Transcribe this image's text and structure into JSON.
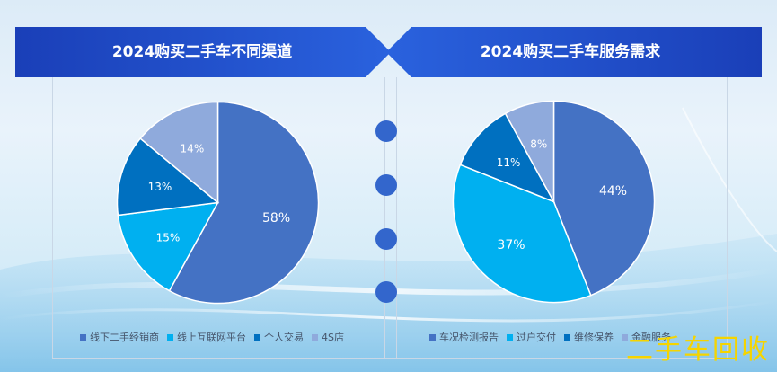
{
  "chart_data": [
    {
      "type": "pie",
      "title": "2024购买二手车不同渠道",
      "categories": [
        "线下二手经销商",
        "线上互联网平台",
        "个人交易",
        "4S店"
      ],
      "values": [
        58,
        15,
        13,
        14
      ],
      "value_labels": [
        "58%",
        "15%",
        "13%",
        "14%"
      ],
      "colors": [
        "#4472c4",
        "#00b0f0",
        "#0070c0",
        "#8faadc"
      ],
      "legend_position": "bottom"
    },
    {
      "type": "pie",
      "title": "2024购买二手车服务需求",
      "categories": [
        "车况检测报告",
        "过户交付",
        "维修保养",
        "金融服务"
      ],
      "values": [
        44,
        37,
        11,
        8
      ],
      "value_labels": [
        "44%",
        "37%",
        "11%",
        "8%"
      ],
      "colors": [
        "#4472c4",
        "#00b0f0",
        "#0070c0",
        "#8faadc"
      ],
      "legend_position": "bottom"
    }
  ],
  "watermark": "二手车回收",
  "theme": {
    "banner_dark": "#1a3fb8",
    "banner_light": "#2f6be3",
    "dot": "#3366cc"
  }
}
